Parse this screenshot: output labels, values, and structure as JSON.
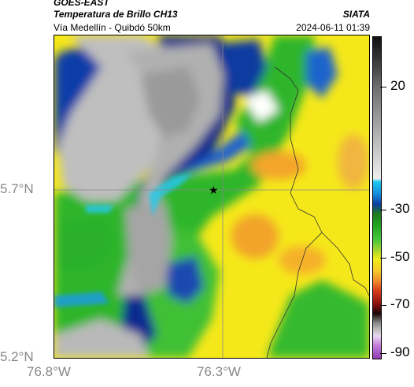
{
  "header": {
    "satellite": "GOES-EAST",
    "product": "Temperatura de Brillo CH13",
    "organization": "SIATA",
    "route": "Vía Medellín - Quibdó 50km",
    "datetime": "2024-06-11 01:39"
  },
  "axes": {
    "lat_labels": [
      "5.7°N",
      "5.2°N"
    ],
    "lon_labels": [
      "76.8°W",
      "76.3°W"
    ]
  },
  "colorbar": {
    "ticks": [
      "20",
      "-30",
      "-50",
      "-70",
      "-90"
    ]
  },
  "marker": {
    "icon": "star-icon"
  },
  "colors": {
    "cold_cloud_gray": "#b5b5b5",
    "deep_blue": "#0b2a8f",
    "cyan": "#26c7e8",
    "green": "#22b022",
    "yellow": "#f5e81a",
    "orange": "#f5a425"
  }
}
